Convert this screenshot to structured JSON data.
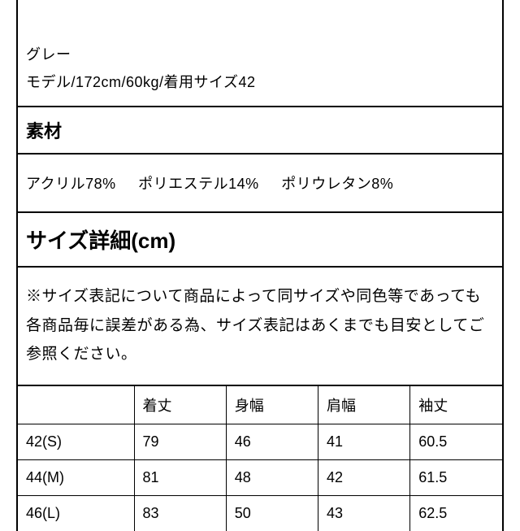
{
  "top": {
    "line1": "グレー",
    "line2": "モデル/172cm/60kg/着用サイズ42"
  },
  "headings": {
    "material": "素材",
    "size_detail": "サイズ詳細(cm)"
  },
  "materials": {
    "m1": "アクリル78%",
    "m2": "ポリエステル14%",
    "m3": "ポリウレタン8%"
  },
  "note": "※サイズ表記について商品によって同サイズや同色等であっても各商品毎に誤差がある為、サイズ表記はあくまでも目安としてご参照ください。",
  "table": {
    "columns": [
      "",
      "着丈",
      "身幅",
      "肩幅",
      "袖丈"
    ],
    "rows": [
      [
        "42(S)",
        "79",
        "46",
        "41",
        "60.5"
      ],
      [
        "44(M)",
        "81",
        "48",
        "42",
        "61.5"
      ],
      [
        "46(L)",
        "83",
        "50",
        "43",
        "62.5"
      ]
    ]
  },
  "colors": {
    "border": "#000000",
    "bg": "#ffffff",
    "text": "#000000"
  }
}
